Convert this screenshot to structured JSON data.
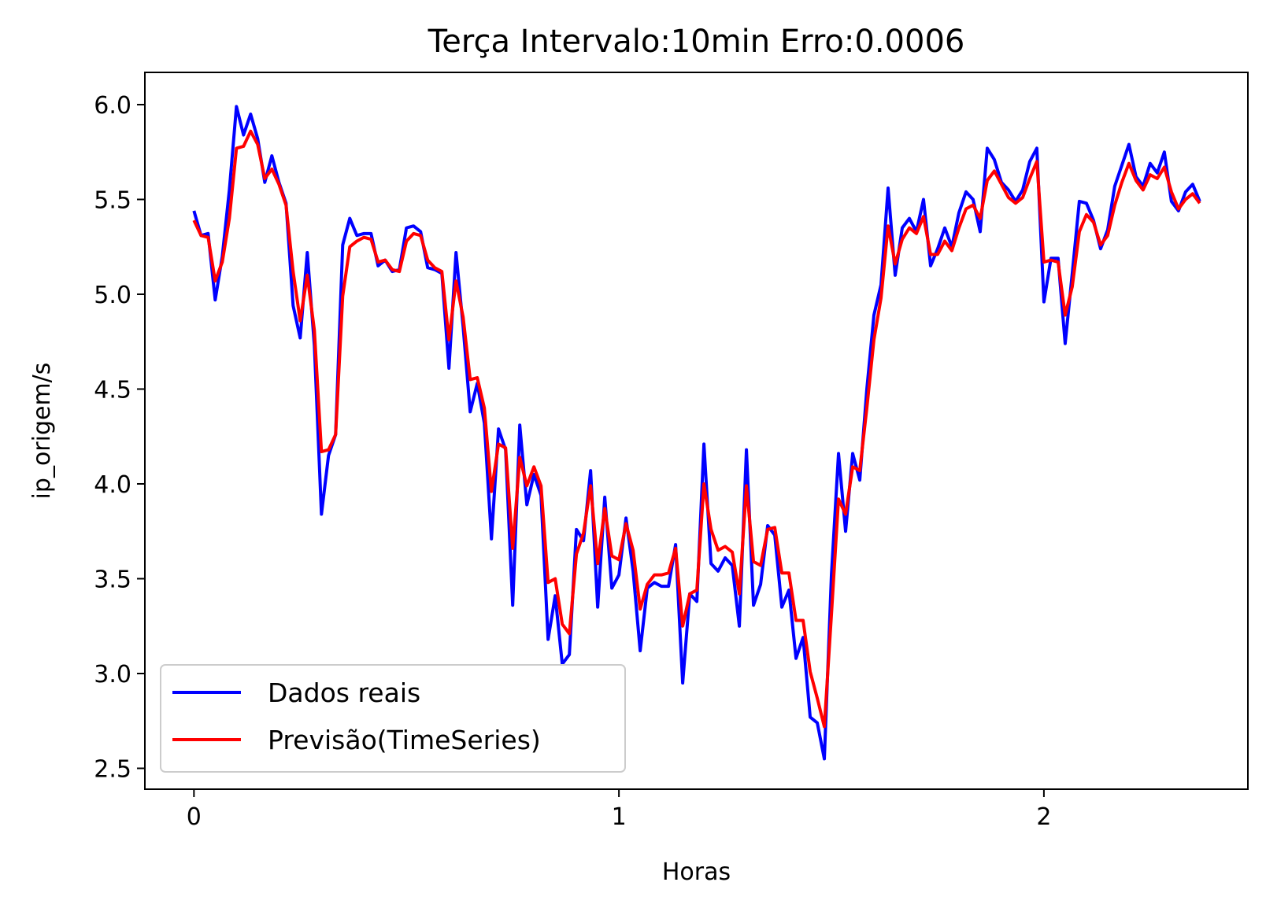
{
  "chart_data": {
    "type": "line",
    "title": "Terça Intervalo:10min Erro:0.0006",
    "xlabel": "Horas",
    "ylabel": "ip_origem/s",
    "xlim": [
      -0.1155,
      2.48
    ],
    "ylim": [
      2.39,
      6.17
    ],
    "x_ticks": [
      0,
      1,
      2
    ],
    "x_tick_labels": [
      "0",
      "1",
      "2"
    ],
    "y_ticks": [
      2.5,
      3.0,
      3.5,
      4.0,
      4.5,
      5.0,
      5.5,
      6.0
    ],
    "y_tick_labels": [
      "2.5",
      "3.0",
      "3.5",
      "4.0",
      "4.5",
      "5.0",
      "5.5",
      "6.0"
    ],
    "grid": false,
    "legend_position": "lower-left",
    "x_step": 0.016667,
    "series": [
      {
        "name": "Dados reais",
        "color": "#0000ff",
        "values": [
          5.44,
          5.31,
          5.32,
          4.97,
          5.2,
          5.55,
          5.99,
          5.84,
          5.95,
          5.82,
          5.59,
          5.73,
          5.59,
          5.48,
          4.94,
          4.77,
          5.22,
          4.73,
          3.84,
          4.15,
          4.26,
          5.26,
          5.4,
          5.31,
          5.32,
          5.32,
          5.15,
          5.18,
          5.12,
          5.13,
          5.35,
          5.36,
          5.33,
          5.14,
          5.13,
          5.11,
          4.61,
          5.22,
          4.83,
          4.38,
          4.53,
          4.32,
          3.71,
          4.29,
          4.18,
          3.36,
          4.31,
          3.89,
          4.05,
          3.94,
          3.18,
          3.41,
          3.05,
          3.1,
          3.76,
          3.7,
          4.07,
          3.35,
          3.93,
          3.45,
          3.52,
          3.82,
          3.54,
          3.12,
          3.45,
          3.48,
          3.46,
          3.46,
          3.68,
          2.95,
          3.42,
          3.38,
          4.21,
          3.58,
          3.54,
          3.61,
          3.57,
          3.25,
          4.18,
          3.36,
          3.47,
          3.78,
          3.73,
          3.35,
          3.44,
          3.08,
          3.19,
          2.77,
          2.74,
          2.55,
          3.52,
          4.16,
          3.75,
          4.16,
          4.02,
          4.5,
          4.89,
          5.05,
          5.56,
          5.1,
          5.35,
          5.4,
          5.33,
          5.5,
          5.15,
          5.24,
          5.35,
          5.25,
          5.43,
          5.54,
          5.5,
          5.33,
          5.77,
          5.71,
          5.59,
          5.55,
          5.49,
          5.55,
          5.7,
          5.77,
          4.96,
          5.19,
          5.19,
          4.74,
          5.11,
          5.49,
          5.48,
          5.39,
          5.24,
          5.34,
          5.57,
          5.68,
          5.79,
          5.62,
          5.57,
          5.69,
          5.64,
          5.75,
          5.49,
          5.44,
          5.54,
          5.58,
          5.49
        ]
      },
      {
        "name": "Previsão(TimeSeries)",
        "color": "#ff0000",
        "values": [
          5.39,
          5.31,
          5.3,
          5.07,
          5.17,
          5.4,
          5.77,
          5.78,
          5.86,
          5.79,
          5.61,
          5.66,
          5.58,
          5.47,
          5.12,
          4.86,
          5.1,
          4.81,
          4.17,
          4.18,
          4.26,
          4.99,
          5.25,
          5.28,
          5.3,
          5.29,
          5.17,
          5.18,
          5.13,
          5.12,
          5.28,
          5.32,
          5.31,
          5.18,
          5.14,
          5.12,
          4.76,
          5.07,
          4.88,
          4.55,
          4.56,
          4.4,
          3.96,
          4.21,
          4.19,
          3.66,
          4.14,
          3.99,
          4.09,
          3.99,
          3.48,
          3.5,
          3.26,
          3.21,
          3.63,
          3.74,
          3.99,
          3.58,
          3.87,
          3.62,
          3.6,
          3.79,
          3.65,
          3.34,
          3.47,
          3.52,
          3.52,
          3.53,
          3.66,
          3.25,
          3.42,
          3.44,
          4.0,
          3.76,
          3.65,
          3.67,
          3.64,
          3.42,
          3.99,
          3.59,
          3.57,
          3.76,
          3.77,
          3.53,
          3.53,
          3.28,
          3.28,
          3.01,
          2.87,
          2.72,
          3.31,
          3.92,
          3.84,
          4.09,
          4.07,
          4.4,
          4.76,
          4.98,
          5.36,
          5.16,
          5.29,
          5.35,
          5.32,
          5.41,
          5.21,
          5.21,
          5.28,
          5.23,
          5.35,
          5.45,
          5.47,
          5.4,
          5.6,
          5.65,
          5.58,
          5.51,
          5.48,
          5.51,
          5.61,
          5.7,
          5.17,
          5.18,
          5.17,
          4.89,
          5.04,
          5.33,
          5.42,
          5.38,
          5.26,
          5.31,
          5.47,
          5.59,
          5.69,
          5.6,
          5.55,
          5.63,
          5.61,
          5.67,
          5.54,
          5.45,
          5.5,
          5.53,
          5.48
        ]
      }
    ]
  }
}
